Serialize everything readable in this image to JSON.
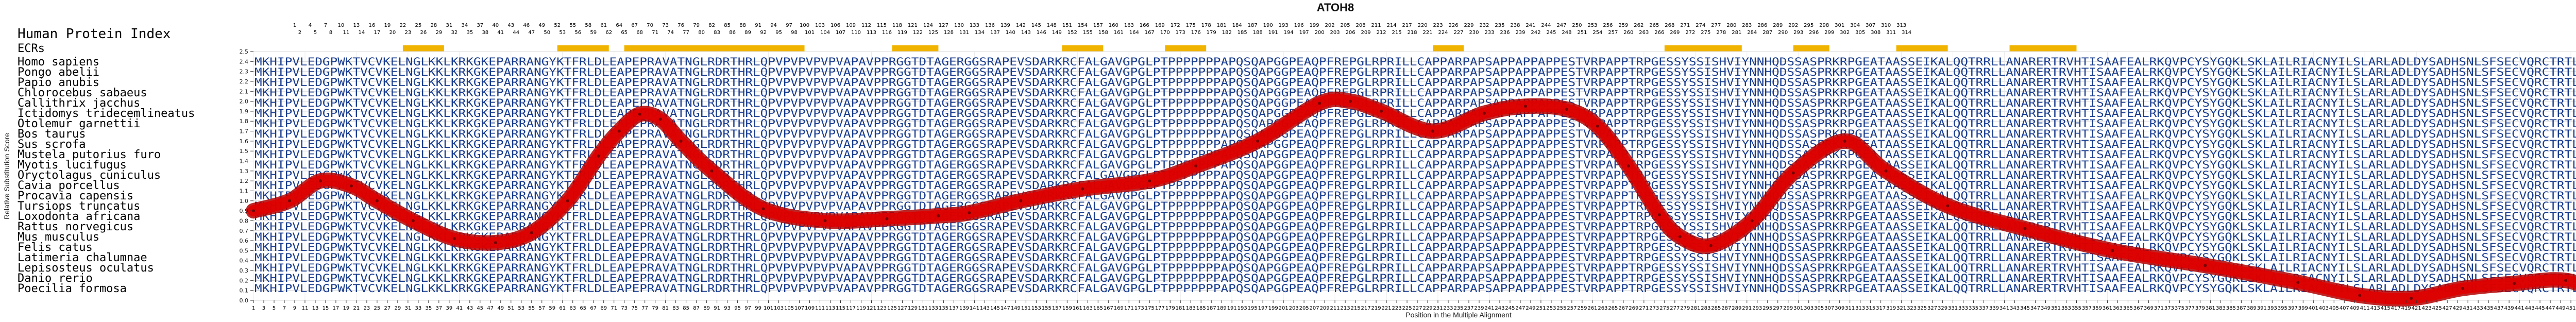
{
  "chart_data": {
    "type": "line",
    "title": "ATOH8",
    "xlabel": "Position in the Multiple Alignment",
    "ylabel": "Relative Substitution Score",
    "row_header": "Human Protein Index",
    "ecr_label": "ECRs",
    "xlim": [
      1,
      469
    ],
    "ylim": [
      0,
      2.5
    ],
    "y_ticks": [
      0,
      0.1,
      0.2,
      0.3,
      0.4,
      0.5,
      0.6,
      0.7,
      0.8,
      0.9,
      1.0,
      1.1,
      1.2,
      1.3,
      1.4,
      1.5,
      1.6,
      1.7,
      1.8,
      1.9,
      2.0,
      2.1,
      2.2,
      2.3,
      2.4,
      2.5
    ],
    "grid": true,
    "human_index_row1_start": 1,
    "human_index_row1_end": 315,
    "human_index_row1_step": 3,
    "human_index_row2_start": 2,
    "human_index_row2_end": 315,
    "human_index_row2_step": 3,
    "alignment_ticks_start": 1,
    "alignment_ticks_end": 469,
    "alignment_ticks_step": 2,
    "ecr_regions": [
      [
        30,
        38
      ],
      [
        60,
        70
      ],
      [
        73,
        108
      ],
      [
        125,
        134
      ],
      [
        158,
        166
      ],
      [
        178,
        186
      ],
      [
        230,
        236
      ],
      [
        275,
        290
      ],
      [
        300,
        307
      ],
      [
        320,
        330
      ],
      [
        342,
        355
      ]
    ],
    "series": [
      {
        "color": "#e00000",
        "x": [
          1,
          8,
          14,
          20,
          25,
          32,
          40,
          48,
          55,
          62,
          68,
          72,
          76,
          80,
          84,
          90,
          100,
          112,
          124,
          134,
          140,
          150,
          162,
          175,
          184,
          196,
          208,
          214,
          220,
          230,
          240,
          248,
          256,
          262,
          268,
          274,
          278,
          284,
          292,
          300,
          310,
          318,
          330,
          345,
          362,
          380,
          398,
          410,
          420,
          430,
          440,
          450,
          460,
          469
        ],
        "y": [
          0.9,
          1.0,
          1.2,
          1.15,
          1.0,
          0.8,
          0.62,
          0.58,
          0.68,
          1.0,
          1.45,
          1.7,
          1.87,
          1.82,
          1.6,
          1.3,
          0.92,
          0.8,
          0.82,
          0.85,
          0.88,
          1.0,
          1.12,
          1.2,
          1.35,
          1.6,
          1.98,
          2.0,
          1.9,
          1.7,
          1.88,
          1.95,
          1.92,
          1.75,
          1.35,
          0.86,
          0.64,
          0.55,
          0.8,
          1.28,
          1.6,
          1.3,
          0.95,
          0.72,
          0.5,
          0.35,
          0.18,
          0.05,
          0.02,
          0.12,
          0.17,
          0.2,
          0.05,
          0.32
        ]
      }
    ]
  },
  "species": [
    "Homo sapiens",
    "Pongo abelii",
    "Papio anubis",
    "Chlorocebus sabaeus",
    "Callithrix jacchus",
    "Ictidomys tridecemlineatus",
    "Otolemur garnettii",
    "Bos taurus",
    "Sus scrofa",
    "Mustela putorius furo",
    "Myotis lucifugus",
    "Oryctolagus cuniculus",
    "Cavia porcellus",
    "Procavia capensis",
    "Tursiops truncatus",
    "Loxodonta africana",
    "Rattus norvegicus",
    "Mus musculus",
    "Felis catus",
    "Latimeria chalumnae",
    "Lepisosteus oculatus",
    "Danio rerio",
    "Poecilia formosa"
  ],
  "sequences": [
    "MKHIPVLEDGPWKTVCVKELNGLKKLKRKGKEPARRANGYKTFRLDLEAPEPRAVATNGLRDRTHRLQPVPVPVPVPVAPAVPPRGGTDTAGERGGSRAPEVSDARKRCFALGAVGPGLPTPPPPPPPAPQSQAPGGPEAQPFREPGLRPRILLCAPPARPAPSAPPAPPAPPESTVRPAPPTRPGESSYSSISHVIYNNHQDSSASPRKRPGEATAASSEIKALQQTRRLLANARERTRVHTISAAFEALRKQVPCYSYGQKLSKLAILRIACNYILSLARLADLDYSADHSNLSFSECVQRCTRTLQAEGRAKKRKE",
    "MKHIPVLEDGPWKTVCVKELNGLKKLKRKGKEPARRANGYKTFRLDLEAPEPRAVATNGLRDRTHRLQPVPVPVPVPVAPAVPPRGGTDTAGERGGSRAPEVSDARKRCFALGAVGPGLPTPPPPPPPAPQSQAPGGPEAQPFREPGLRPRILLCAPPARPAPSAPPAPPAPPESTVRPAPPTRPGESSYSSISHVIYNNHQDSSASPRKRPGEATAASSEIKALQQTRRLLANARERTRVHTISAAFEALRKQVPCYSYGQKLSKLAILRIACNYILSLARLADLDYSADHSNLSFSECVQRCTRTLQAEGRAKKRKE",
    "MKHIPVLEDGPWKTVCVKELNGLKKLKRKGKEPARRANGYKTFRLDLEAPEPRAVATNGLRDRTHRLQPVPVPVPVPVAPAVPPRGGTDTAGERGGSRAPEVSDARKRCFALGAVGPGLPTPPPPPPPAPQSQAPGGPEAQPFREPGLRPRILLCAPPARPAPSAPPAPPAPPESTVRPAPPTRPGESSYSSISHVIYNNHQDSSASPRKRPGEATAASSEIKALQQTRRLLANARERTRVHTISAAFEALRKQVPCYSYGQKLSKLAILRIACNYILSLARLADLDYSADHSNLSFSECVQRCTRTLQAEGRAKKRKE",
    "MKHIPVLEDGPWKTVCVKELNGLKKLKRKGKEPARRANGYKTFRLDLEAPEPRAVATNGLRDRTHRLQPVPVPVPVPVAPAVPPRGGTDTAGERGGSRAPEVSDARKRCFALGAVGPGLPTPPPPPPPAPQSQAPGGPEAQPFREPGLRPRILLCAPPARPAPSAPPAPPAPPESTVRPAPPTRPGESSYSSISHVIYNNHQDSSASPRKRPGEATAASSEIKALQQTRRLLANARERTRVHTISAAFEALRKQVPCYSYGQKLSKLAILRIACNYILSLARLADLDYSADHSNLSFSECVQRCTRTLQAEGRAKKRKE",
    "MKHIPVLEDGPWKTVCVKELNGLKKLKRKGKEPARRANGYKTFRLDLEAPEPRAVATNGLRDRTHRLQPVPVPVPVPVAPAVPPRGGTDTAGERGGSRAPEVSDARKRCFALGAVGPGLPTPPPPPPPAPQSQAPGGPEAQPFREPGLRPRILLCAPPARPAPSAPPAPPAPPESTVRPAPPTRPGESSYSSISHVIYNNHQDSSASPRKRPGEATAASSEIKALQQTRRLLANARERTRVHTISAAFEALRKQVPCYSYGQKLSKLAILRIACNYILSLARLADLDYSADHSNLSFSECVQRCTRTLQAEGRAKKRKE",
    "MKHIPVLEDGPWKTVCVKELNGLKKLKRKGKEPARRANGYKTFRLDLEAPEPRAVATNGLRDRTHRLQPVPVPVPVPVAPAVPPRGGTDTAGERGGSRAPEVSDARKRCFALGAVGPGLPTPPPPPPPAPQSQAPGGPEAQPFREPGLRPRILLCAPPARPAPSAPPAPPAPPESTVRPAPPTRPGESSYSSISHVIYNNHQDSSASPRKRPGEATAASSEIKALQQTRRLLANARERTRVHTISAAFEALRKQVPCYSYGQKLSKLAILRIACNYILSLARLADLDYSADHSNLSFSECVQRCTRTLQAEGRAKKRKE",
    "MKHIPVLEDGPWKTVCVKELNGLKKLKRKGKEPARRANGYKTFRLDLEAPEPRAVATNGLRDRTHRLQPVPVPVPVPVAPAVPPRGGTDTAGERGGSRAPEVSDARKRCFALGAVGPGLPTPPPPPPPAPQSQAPGGPEAQPFREPGLRPRILLCAPPARPAPSAPPAPPAPPESTVRPAPPTRPGESSYSSISHVIYNNHQDSSASPRKRPGEATAASSEIKALQQTRRLLANARERTRVHTISAAFEALRKQVPCYSYGQKLSKLAILRIACNYILSLARLADLDYSADHSNLSFSECVQRCTRTLQAEGRAKKRKE",
    "MKHIPVLEDGPWKTVCVKELNGLKKLKRKGKEPARRANGYKTFRLDLEAPEPRAVATNGLRDRTHRLQPVPVPVPVPVAPAVPPRGGTDTAGERGGSRAPEVSDARKRCFALGAVGPGLPTPPPPPPPAPQSQAPGGPEAQPFREPGLRPRILLCAPPARPAPSAPPAPPAPPESTVRPAPPTRPGESSYSSISHVIYNNHQDSSASPRKRPGEATAASSEIKALQQTRRLLANARERTRVHTISAAFEALRKQVPCYSYGQKLSKLAILRIACNYILSLARLADLDYSADHSNLSFSECVQRCTRTLQAEGRAKKRKE",
    "MKHIPVLEDGPWKTVCVKELNGLKKLKRKGKEPARRANGYKTFRLDLEAPEPRAVATNGLRDRTHRLQPVPVPVPVPVAPAVPPRGGTDTAGERGGSRAPEVSDARKRCFALGAVGPGLPTPPPPPPPAPQSQAPGGPEAQPFREPGLRPRILLCAPPARPAPSAPPAPPAPPESTVRPAPPTRPGESSYSSISHVIYNNHQDSSASPRKRPGEATAASSEIKALQQTRRLLANARERTRVHTISAAFEALRKQVPCYSYGQKLSKLAILRIACNYILSLARLADLDYSADHSNLSFSECVQRCTRTLQAEGRAKKRKE",
    "MKHIPVLEDGPWKTVCVKELNGLKKLKRKGKEPARRANGYKTFRLDLEAPEPRAVATNGLRDRTHRLQPVPVPVPVPVAPAVPPRGGTDTAGERGGSRAPEVSDARKRCFALGAVGPGLPTPPPPPPPAPQSQAPGGPEAQPFREPGLRPRILLCAPPARPAPSAPPAPPAPPESTVRPAPPTRPGESSYSSISHVIYNNHQDSSASPRKRPGEATAASSEIKALQQTRRLLANARERTRVHTISAAFEALRKQVPCYSYGQKLSKLAILRIACNYILSLARLADLDYSADHSNLSFSECVQRCTRTLQAEGRAKKRKE",
    "MKHIPVLEDGPWKTVCVKELNGLKKLKRKGKEPARRANGYKTFRLDLEAPEPRAVATNGLRDRTHRLQPVPVPVPVPVAPAVPPRGGTDTAGERGGSRAPEVSDARKRCFALGAVGPGLPTPPPPPPPAPQSQAPGGPEAQPFREPGLRPRILLCAPPARPAPSAPPAPPAPPESTVRPAPPTRPGESSYSSISHVIYNNHQDSSASPRKRPGEATAASSEIKALQQTRRLLANARERTRVHTISAAFEALRKQVPCYSYGQKLSKLAILRIACNYILSLARLADLDYSADHSNLSFSECVQRCTRTLQAEGRAKKRKE",
    "MKHIPVLEDGPWKTVCVKELNGLKKLKRKGKEPARRANGYKTFRLDLEAPEPRAVATNGLRDRTHRLQPVPVPVPVPVAPAVPPRGGTDTAGERGGSRAPEVSDARKRCFALGAVGPGLPTPPPPPPPAPQSQAPGGPEAQPFREPGLRPRILLCAPPARPAPSAPPAPPAPPESTVRPAPPTRPGESSYSSISHVIYNNHQDSSASPRKRPGEATAASSEIKALQQTRRLLANARERTRVHTISAAFEALRKQVPCYSYGQKLSKLAILRIACNYILSLARLADLDYSADHSNLSFSECVQRCTRTLQAEGRAKKRKE",
    "MKHIPVLEDGPWKTVCVKELNGLKKLKRKGKEPARRANGYKTFRLDLEAPEPRAVATNGLRDRTHRLQPVPVPVPVPVAPAVPPRGGTDTAGERGGSRAPEVSDARKRCFALGAVGPGLPTPPPPPPPAPQSQAPGGPEAQPFREPGLRPRILLCAPPARPAPSAPPAPPAPPESTVRPAPPTRPGESSYSSISHVIYNNHQDSSASPRKRPGEATAASSEIKALQQTRRLLANARERTRVHTISAAFEALRKQVPCYSYGQKLSKLAILRIACNYILSLARLADLDYSADHSNLSFSECVQRCTRTLQAEGRAKKRKE",
    "MKHIPVLEDGPWKTVCVKELNGLKKLKRKGKEPARRANGYKTFRLDLEAPEPRAVATNGLRDRTHRLQPVPVPVPVPVAPAVPPRGGTDTAGERGGSRAPEVSDARKRCFALGAVGPGLPTPPPPPPPAPQSQAPGGPEAQPFREPGLRPRILLCAPPARPAPSAPPAPPAPPESTVRPAPPTRPGESSYSSISHVIYNNHQDSSASPRKRPGEATAASSEIKALQQTRRLLANARERTRVHTISAAFEALRKQVPCYSYGQKLSKLAILRIACNYILSLARLADLDYSADHSNLSFSECVQRCTRTLQAEGRAKKRKE",
    "MKHIPVLEDGPWKTVCVKELNGLKKLKRKGKEPARRANGYKTFRLDLEAPEPRAVATNGLRDRTHRLQPVPVPVPVPVAPAVPPRGGTDTAGERGGSRAPEVSDARKRCFALGAVGPGLPTPPPPPPPAPQSQAPGGPEAQPFREPGLRPRILLCAPPARPAPSAPPAPPAPPESTVRPAPPTRPGESSYSSISHVIYNNHQDSSASPRKRPGEATAASSEIKALQQTRRLLANARERTRVHTISAAFEALRKQVPCYSYGQKLSKLAILRIACNYILSLARLADLDYSADHSNLSFSECVQRCTRTLQAEGRAKKRKE",
    "MKHIPVLEDGPWKTVCVKELNGLKKLKRKGKEPARRANGYKTFRLDLEAPEPRAVATNGLRDRTHRLQPVPVPVPVPVAPAVPPRGGTDTAGERGGSRAPEVSDARKRCFALGAVGPGLPTPPPPPPPAPQSQAPGGPEAQPFREPGLRPRILLCAPPARPAPSAPPAPPAPPESTVRPAPPTRPGESSYSSISHVIYNNHQDSSASPRKRPGEATAASSEIKALQQTRRLLANARERTRVHTISAAFEALRKQVPCYSYGQKLSKLAILRIACNYILSLARLADLDYSADHSNLSFSECVQRCTRTLQAEGRAKKRKE",
    "MKHIPVLEDGPWKTVCVKELNGLKKLKRKGKEPARRANGYKTFRLDLEAPEPRAVATNGLRDRTHRLQPVPVPVPVPVAPAVPPRGGTDTAGERGGSRAPEVSDARKRCFALGAVGPGLPTPPPPPPPAPQSQAPGGPEAQPFREPGLRPRILLCAPPARPAPSAPPAPPAPPESTVRPAPPTRPGESSYSSISHVIYNNHQDSSASPRKRPGEATAASSEIKALQQTRRLLANARERTRVHTISAAFEALRKQVPCYSYGQKLSKLAILRIACNYILSLARLADLDYSADHSNLSFSECVQRCTRTLQAEGRAKKRKE",
    "MKHIPVLEDGPWKTVCVKELNGLKKLKRKGKEPARRANGYKTFRLDLEAPEPRAVATNGLRDRTHRLQPVPVPVPVPVAPAVPPRGGTDTAGERGGSRAPEVSDARKRCFALGAVGPGLPTPPPPPPPAPQSQAPGGPEAQPFREPGLRPRILLCAPPARPAPSAPPAPPAPPESTVRPAPPTRPGESSYSSISHVIYNNHQDSSASPRKRPGEATAASSEIKALQQTRRLLANARERTRVHTISAAFEALRKQVPCYSYGQKLSKLAILRIACNYILSLARLADLDYSADHSNLSFSECVQRCTRTLQAEGRAKKRKE",
    "MKHIPVLEDGPWKTVCVKELNGLKKLKRKGKEPARRANGYKTFRLDLEAPEPRAVATNGLRDRTHRLQPVPVPVPVPVAPAVPPRGGTDTAGERGGSRAPEVSDARKRCFALGAVGPGLPTPPPPPPPAPQSQAPGGPEAQPFREPGLRPRILLCAPPARPAPSAPPAPPAPPESTVRPAPPTRPGESSYSSISHVIYNNHQDSSASPRKRPGEATAASSEIKALQQTRRLLANARERTRVHTISAAFEALRKQVPCYSYGQKLSKLAILRIACNYILSLARLADLDYSADHSNLSFSECVQRCTRTLQAEGRAKKRKE",
    "MKHIPVLEDGPWKTVCVKELNGLKKLKRKGKEPARRANGYKTFRLDLEAPEPRAVATNGLRDRTHRLQPVPVPVPVPVAPAVPPRGGTDTAGERGGSRAPEVSDARKRCFALGAVGPGLPTPPPPPPPAPQSQAPGGPEAQPFREPGLRPRILLCAPPARPAPSAPPAPPAPPESTVRPAPPTRPGESSYSSISHVIYNNHQDSSASPRKRPGEATAASSEIKALQQTRRLLANARERTRVHTISAAFEALRKQVPCYSYGQKLSKLAILRIACNYILSLARLADLDYSADHSNLSFSECVQRCTRTLQAEGRAKKRKE",
    "MKHIPVLEDGPWKTVCVKELNGLKKLKRKGKEPARRANGYKTFRLDLEAPEPRAVATNGLRDRTHRLQPVPVPVPVPVAPAVPPRGGTDTAGERGGSRAPEVSDARKRCFALGAVGPGLPTPPPPPPPAPQSQAPGGPEAQPFREPGLRPRILLCAPPARPAPSAPPAPPAPPESTVRPAPPTRPGESSYSSISHVIYNNHQDSSASPRKRPGEATAASSEIKALQQTRRLLANARERTRVHTISAAFEALRKQVPCYSYGQKLSKLAILRIACNYILSLARLADLDYSADHSNLSFSECVQRCTRTLQAEGRAKKRKE",
    "MKHIPVLEDGPWKTVCVKELNGLKKLKRKGKEPARRANGYKTFRLDLEAPEPRAVATNGLRDRTHRLQPVPVPVPVPVAPAVPPRGGTDTAGERGGSRAPEVSDARKRCFALGAVGPGLPTPPPPPPPAPQSQAPGGPEAQPFREPGLRPRILLCAPPARPAPSAPPAPPAPPESTVRPAPPTRPGESSYSSISHVIYNNHQDSSASPRKRPGEATAASSEIKALQQTRRLLANARERTRVHTISAAFEALRKQVPCYSYGQKLSKLAILRIACNYILSLARLADLDYSADHSNLSFSECVQRCTRTLQAEGRAKKRKE",
    "MKHIPVLEDGPWKTVCVKELNGLKKLKRKGKEPARRANGYKTFRLDLEAPEPRAVATNGLRDRTHRLQPVPVPVPVPVAPAVPPRGGTDTAGERGGSRAPEVSDARKRCFALGAVGPGLPTPPPPPPPAPQSQAPGGPEAQPFREPGLRPRILLCAPPARPAPSAPPAPPAPPESTVRPAPPTRPGESSYSSISHVIYNNHQDSSASPRKRPGEATAASSEIKALQQTRRLLANARERTRVHTISAAFEALRKQVPCYSYGQKLSKLAILRIACNYILSLARLADLDYSADHSNLSFSECVQRCTRTLQAEGRAKKRKE"
  ],
  "colors": {
    "sequence": "#1a3d8f",
    "curve": "#e00000",
    "ecr_bar": "#f0b400",
    "grid": "#d8d8d8"
  }
}
